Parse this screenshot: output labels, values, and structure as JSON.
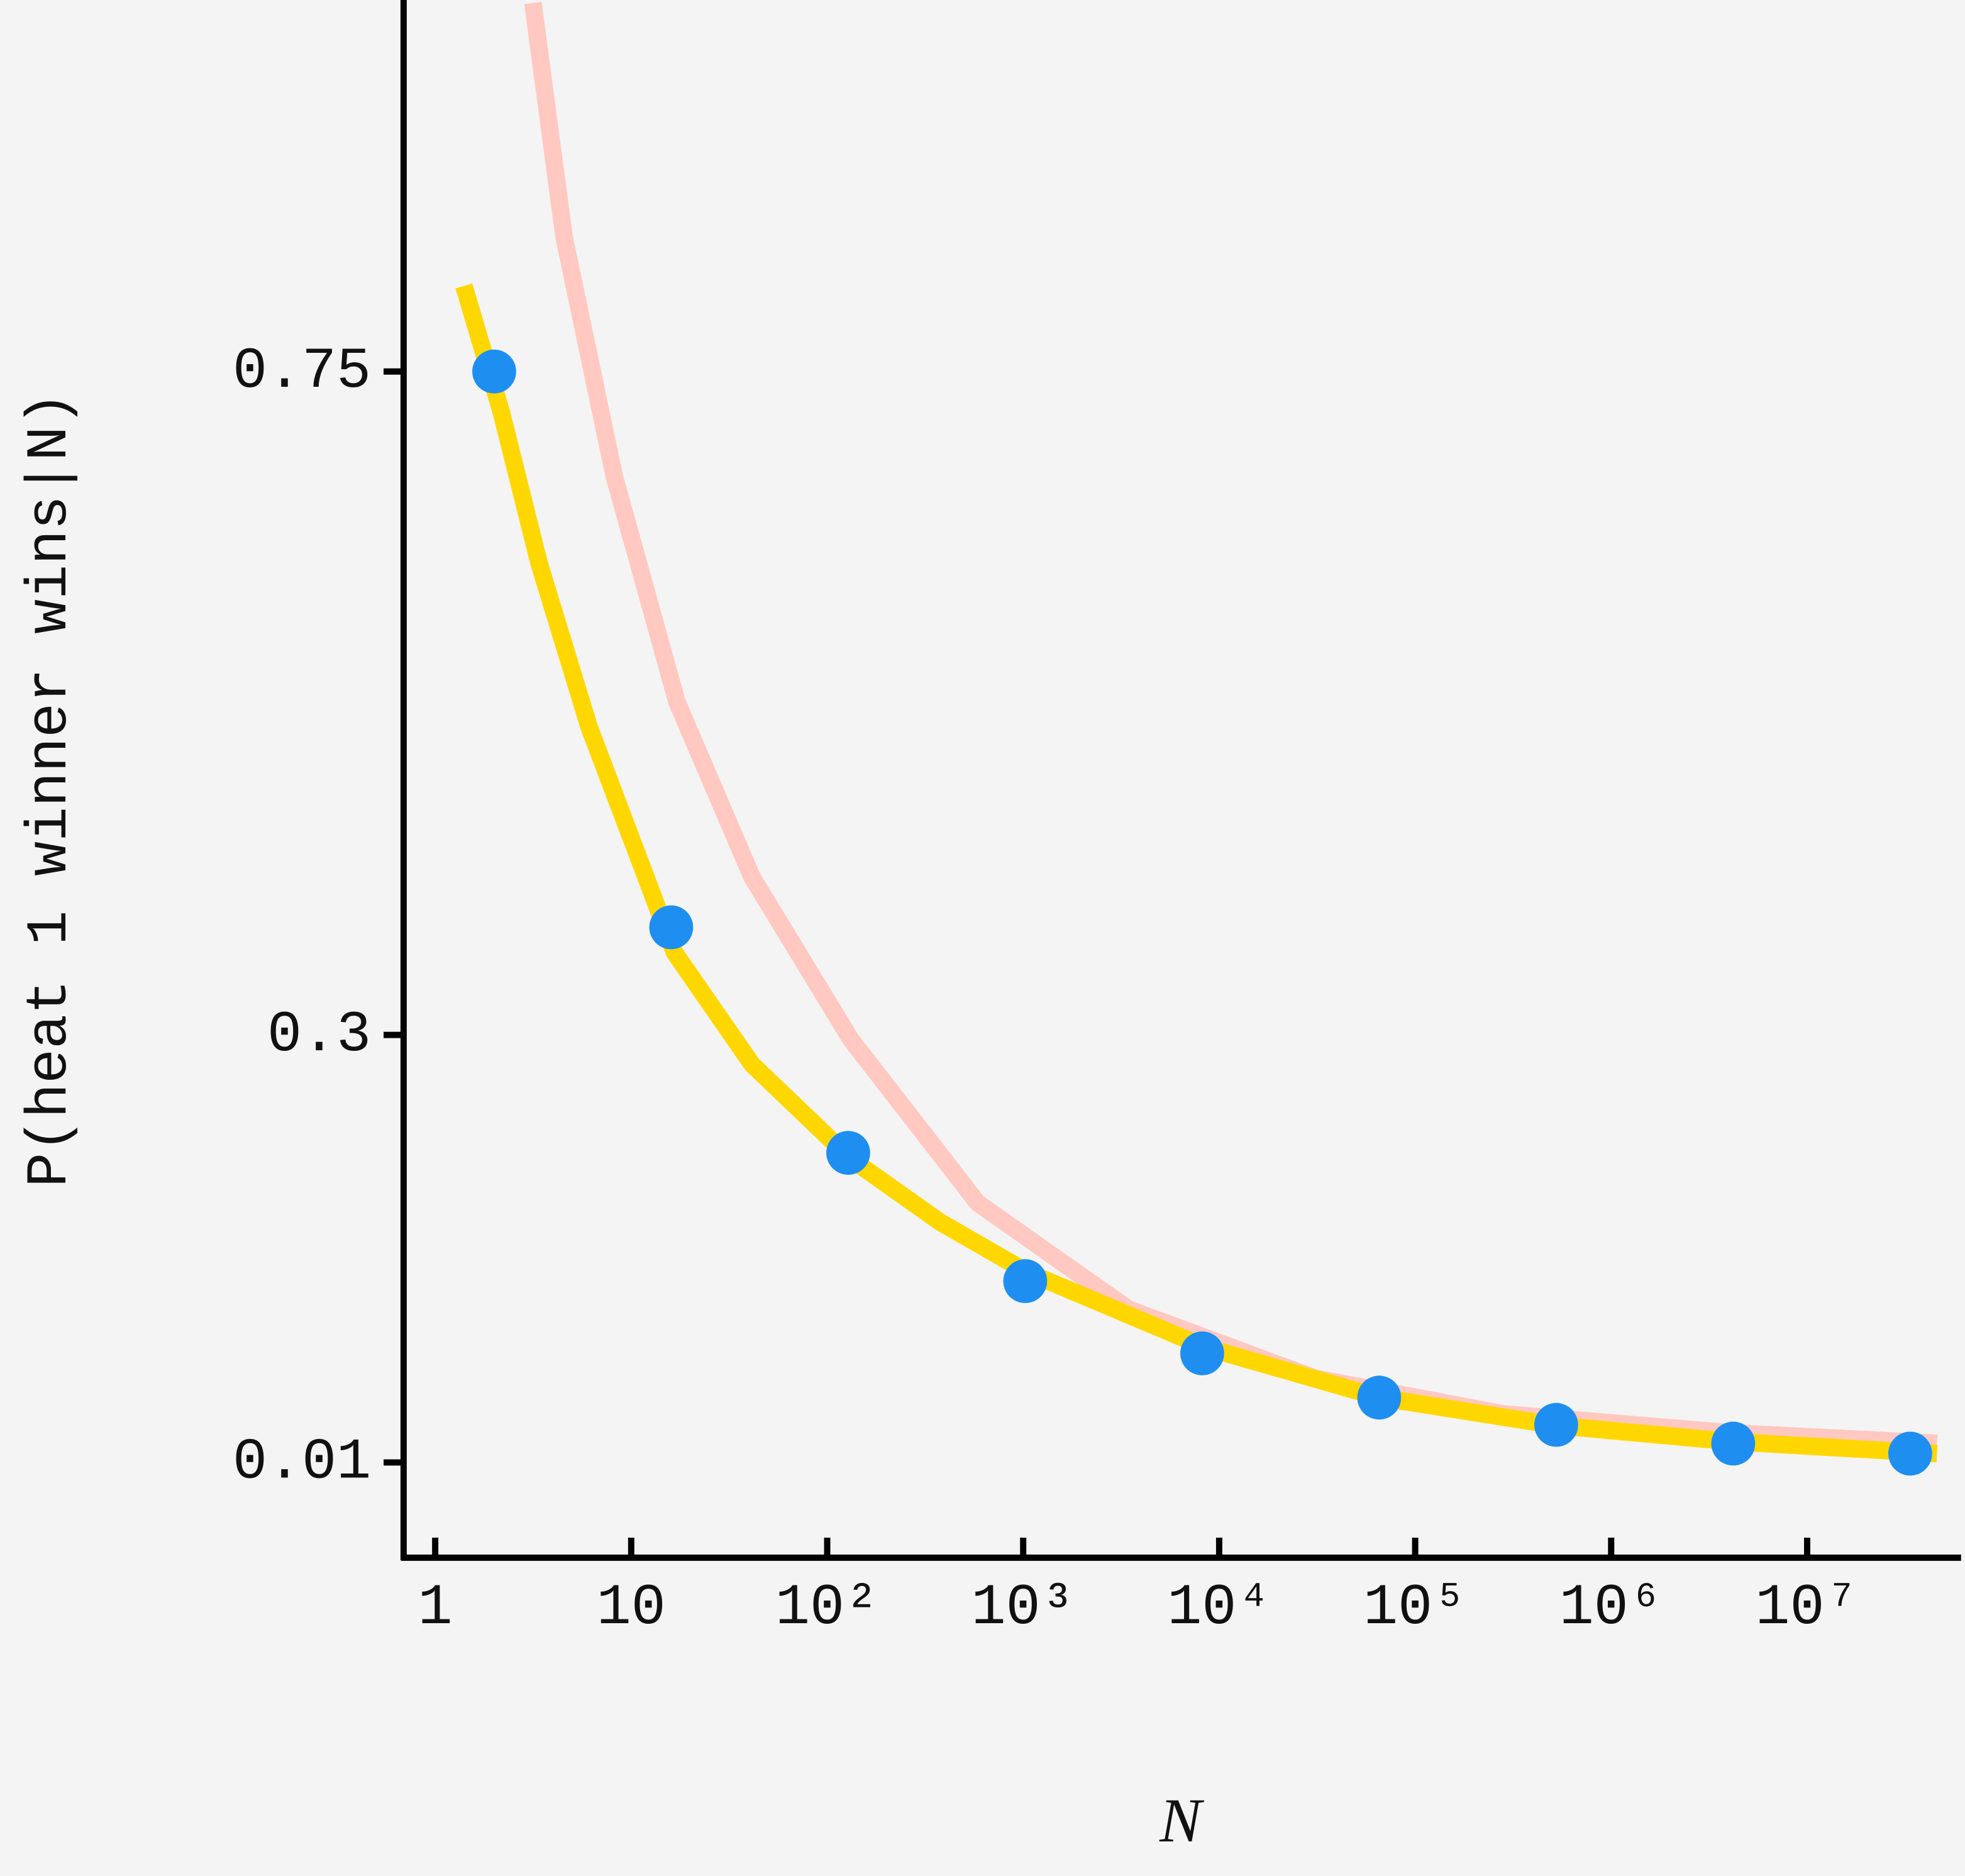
{
  "chart_data": {
    "type": "line",
    "x_label": "N",
    "y_label": "P(heat 1 winner wins|N)",
    "xscale": "log",
    "xlim": [
      0.69,
      61000000
    ],
    "ylim": [
      -0.0546,
      1.002
    ],
    "xticks": [
      1,
      10,
      {
        "value": 100,
        "label": "10²"
      },
      {
        "value": 1000,
        "label": "10³"
      },
      {
        "value": 10000,
        "label": "10⁴"
      },
      {
        "value": 100000,
        "label": "10⁵"
      },
      {
        "value": 1000000,
        "label": "10⁶"
      },
      {
        "value": 10000000,
        "label": "10⁷"
      }
    ],
    "yticks": [
      0.75,
      0.3,
      0.01
    ],
    "series": [
      {
        "type": "line",
        "color": "#FFC8C0",
        "x": [
          3.15,
          4.55,
          8.2,
          17.1,
          41.4,
          132,
          586,
          3450,
          31000,
          280000,
          4200000,
          46000000
        ],
        "values": [
          1.0,
          0.841,
          0.679,
          0.526,
          0.407,
          0.297,
          0.186,
          0.114,
          0.067,
          0.043,
          0.03,
          0.023
        ]
      },
      {
        "type": "line",
        "color": "#FFD700",
        "x": [
          1.4,
          2.18,
          3.39,
          6.1,
          16.6,
          41.4,
          132,
          377,
          1050,
          8500,
          66000,
          530000,
          4200000,
          46000000
        ],
        "values": [
          0.808,
          0.722,
          0.62,
          0.509,
          0.356,
          0.28,
          0.216,
          0.173,
          0.139,
          0.088,
          0.054,
          0.035,
          0.024,
          0.016
        ]
      },
      {
        "type": "scatter",
        "color": "#1E8FF0",
        "x": [
          2,
          16,
          128,
          1024,
          8192,
          65536,
          524288,
          4194304,
          33554432
        ],
        "values": [
          0.75,
          0.373,
          0.22,
          0.133,
          0.084,
          0.054,
          0.0355,
          0.0228,
          0.016
        ]
      }
    ]
  }
}
